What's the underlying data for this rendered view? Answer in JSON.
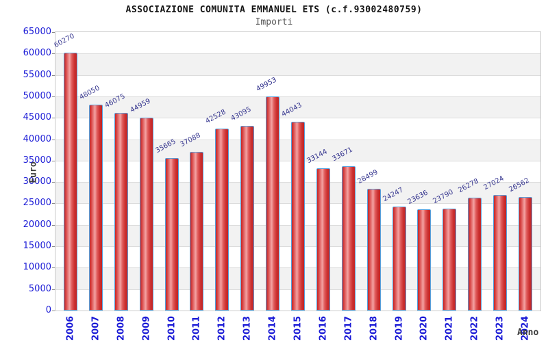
{
  "chart_data": {
    "type": "bar",
    "title": "ASSOCIAZIONE COMUNITA EMMANUEL ETS (c.f.93002480759)",
    "subtitle": "Importi",
    "xlabel": "Anno",
    "ylabel": "Euro",
    "categories": [
      "2006",
      "2007",
      "2008",
      "2009",
      "2010",
      "2011",
      "2012",
      "2013",
      "2014",
      "2015",
      "2016",
      "2017",
      "2018",
      "2019",
      "2020",
      "2021",
      "2022",
      "2023",
      "2024"
    ],
    "values": [
      60270,
      48050,
      46075,
      44959,
      35665,
      37088,
      42528,
      43095,
      49953,
      44043,
      33144,
      33671,
      28499,
      24247,
      23636,
      23790,
      26278,
      27024,
      26562
    ],
    "ylim": [
      0,
      65000
    ],
    "ytick_step": 5000,
    "ytick_labels": [
      "0",
      "5000",
      "10000",
      "15000",
      "20000",
      "25000",
      "30000",
      "35000",
      "40000",
      "45000",
      "50000",
      "55000",
      "60000",
      "65000"
    ],
    "grid": "alternating-horizontal-bands",
    "legend": "none",
    "colors": {
      "bar_dark": "#c42626",
      "bar_light": "#f4a2a2",
      "bar_border": "#55a0dd",
      "tick_text": "#1a1ad6",
      "value_text": "#34348e",
      "band_gray": "#f2f2f2",
      "grid_line": "#dcdcdc",
      "axis_name_text": "#3c3c3c",
      "subtitle_text": "#565656",
      "title_text": "#141414"
    }
  }
}
